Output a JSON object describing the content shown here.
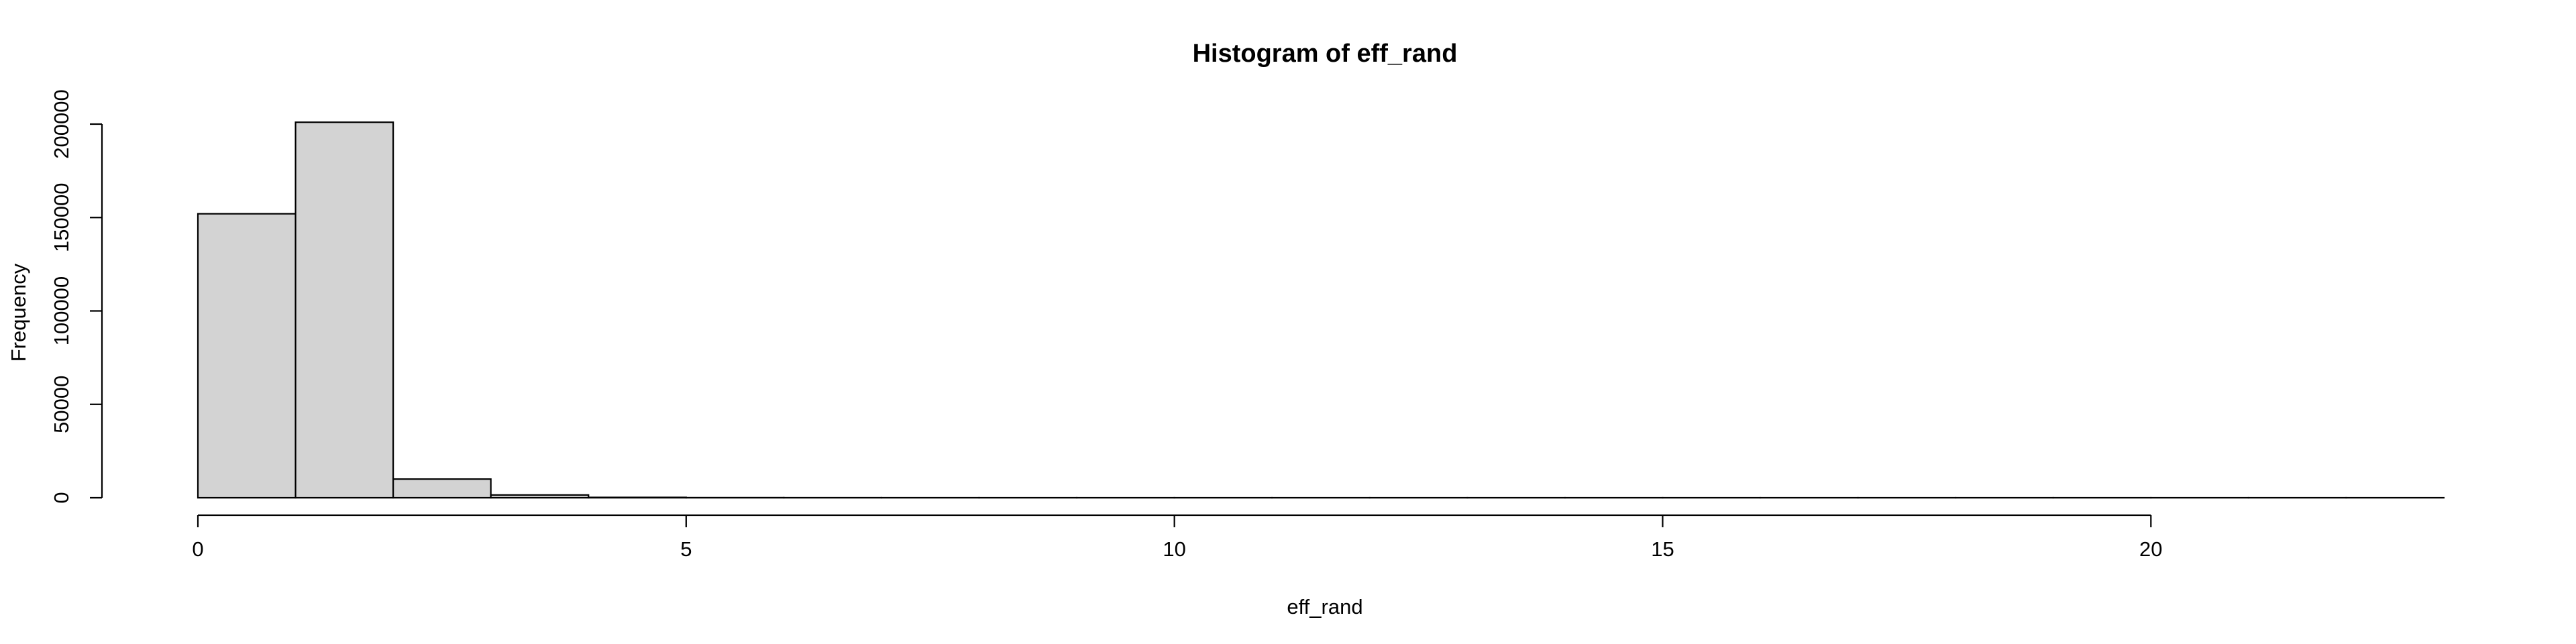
{
  "chart_data": {
    "type": "bar",
    "title": "Histogram of eff_rand",
    "xlabel": "eff_rand",
    "ylabel": "Frequency",
    "bin_edges": [
      0,
      1,
      2,
      3,
      4,
      5,
      6,
      7,
      8,
      9,
      10,
      11,
      12,
      13,
      14,
      15,
      16,
      17,
      18,
      19,
      20,
      21,
      22,
      23
    ],
    "values": [
      152000,
      201000,
      10000,
      1500,
      200,
      50,
      20,
      10,
      5,
      3,
      2,
      1,
      1,
      1,
      1,
      1,
      1,
      1,
      1,
      1,
      1,
      1,
      1
    ],
    "xlim": [
      0,
      23
    ],
    "ylim": [
      0,
      200000
    ],
    "x_ticks": [
      0,
      5,
      10,
      15,
      20
    ],
    "x_tick_labels": [
      "0",
      "5",
      "10",
      "15",
      "20"
    ],
    "y_ticks": [
      0,
      50000,
      100000,
      150000,
      200000
    ],
    "y_tick_labels": [
      "0",
      "50000",
      "100000",
      "150000",
      "200000"
    ],
    "grid": false,
    "bar_fill": "#d3d3d3",
    "bar_stroke": "#000000"
  }
}
